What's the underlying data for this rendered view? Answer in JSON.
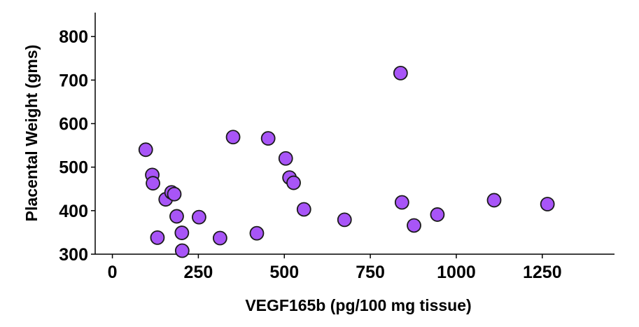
{
  "chart_data": {
    "type": "scatter",
    "title": "",
    "xlabel": "VEGF165b (pg/100 mg tissue)",
    "ylabel": "Placental Weight (gms)",
    "xlim": [
      -50,
      1460
    ],
    "ylim": [
      300,
      855
    ],
    "x_ticks": [
      0,
      250,
      500,
      750,
      1000,
      1250
    ],
    "y_ticks": [
      300,
      400,
      500,
      600,
      700,
      800
    ],
    "x_tick_labels": [
      "0",
      "250",
      "500",
      "750",
      "1000",
      "1250"
    ],
    "y_tick_labels": [
      "300",
      "400",
      "500",
      "600",
      "700",
      "800"
    ],
    "grid": false,
    "marker_color": "#a855f7",
    "marker_edge_color": "#1a1a1a",
    "points": [
      {
        "x": 97,
        "y": 540
      },
      {
        "x": 116,
        "y": 482
      },
      {
        "x": 118,
        "y": 463
      },
      {
        "x": 131,
        "y": 338
      },
      {
        "x": 155,
        "y": 426
      },
      {
        "x": 172,
        "y": 442
      },
      {
        "x": 180,
        "y": 438
      },
      {
        "x": 187,
        "y": 387
      },
      {
        "x": 202,
        "y": 349
      },
      {
        "x": 203,
        "y": 308
      },
      {
        "x": 252,
        "y": 385
      },
      {
        "x": 313,
        "y": 337
      },
      {
        "x": 351,
        "y": 569
      },
      {
        "x": 420,
        "y": 348
      },
      {
        "x": 453,
        "y": 566
      },
      {
        "x": 504,
        "y": 520
      },
      {
        "x": 515,
        "y": 476
      },
      {
        "x": 527,
        "y": 464
      },
      {
        "x": 557,
        "y": 403
      },
      {
        "x": 675,
        "y": 379
      },
      {
        "x": 838,
        "y": 716
      },
      {
        "x": 842,
        "y": 419
      },
      {
        "x": 877,
        "y": 366
      },
      {
        "x": 945,
        "y": 391
      },
      {
        "x": 1110,
        "y": 424
      },
      {
        "x": 1265,
        "y": 415
      }
    ]
  }
}
